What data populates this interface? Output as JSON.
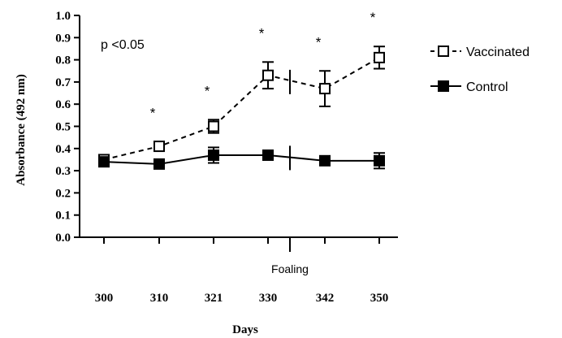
{
  "chart_data": {
    "type": "line",
    "xlabel": "Days",
    "ylabel": "Absorbance (492 nm)",
    "categories": [
      "300",
      "310",
      "321",
      "330",
      "342",
      "350"
    ],
    "ylim": [
      0,
      1.0
    ],
    "yticks": [
      "0.0",
      "0.1",
      "0.2",
      "0.3",
      "0.4",
      "0.5",
      "0.6",
      "0.7",
      "0.8",
      "0.9",
      "1.0"
    ],
    "grid": false,
    "legend_position": "right",
    "series": [
      {
        "name": "Vaccinated",
        "marker": "open-square",
        "line_style": "dashed",
        "values": [
          0.35,
          0.41,
          0.5,
          0.73,
          0.67,
          0.81
        ],
        "error": [
          0.02,
          0.02,
          0.03,
          0.06,
          0.08,
          0.05
        ]
      },
      {
        "name": "Control",
        "marker": "filled-square",
        "line_style": "solid",
        "values": [
          0.34,
          0.33,
          0.37,
          0.37,
          0.345,
          0.345
        ],
        "error": [
          0.02,
          0.01,
          0.035,
          0.01,
          0.01,
          0.035
        ]
      }
    ],
    "significance_markers": [
      "",
      "*",
      "*",
      "*",
      "*",
      "*"
    ],
    "annotation": "p <0.05",
    "event_label": "Foaling"
  }
}
